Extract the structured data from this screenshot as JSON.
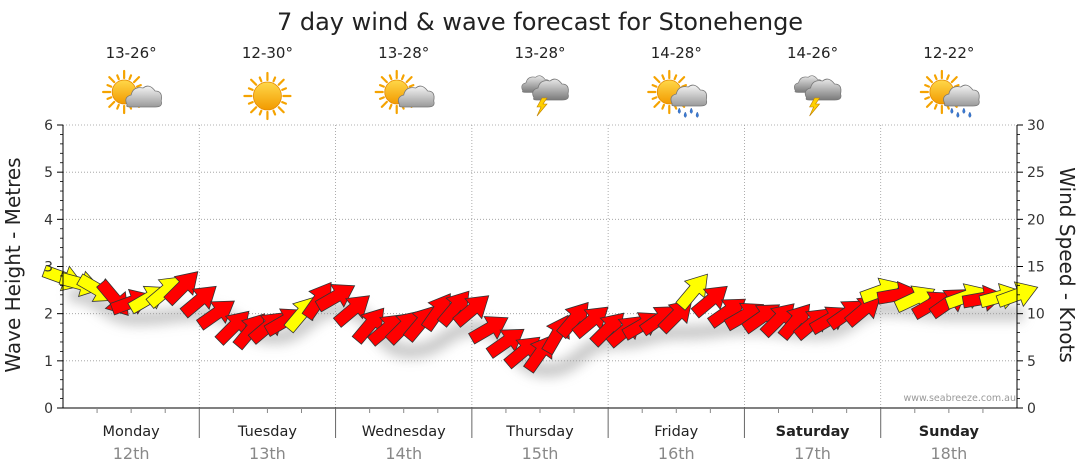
{
  "chart_data": {
    "type": "line",
    "title": "7 day wind & wave forecast for Stonehenge",
    "ylabel_left": "Wave Height - Metres",
    "ylabel_right": "Wind Speed - Knots",
    "ylim_left": [
      0,
      6
    ],
    "ylim_right": [
      0,
      30
    ],
    "yticks_left": [
      "0",
      "1",
      "2",
      "3",
      "4",
      "5",
      "6"
    ],
    "yticks_right": [
      "0",
      "5",
      "10",
      "15",
      "20",
      "25",
      "30"
    ],
    "grid": true,
    "credit": "www.seabreeze.com.au",
    "days": [
      {
        "day": "Monday",
        "date": "12th",
        "temp": "13-26°",
        "icon": "partly-cloudy-icon",
        "bold": false
      },
      {
        "day": "Tuesday",
        "date": "13th",
        "temp": "12-30°",
        "icon": "sunny-icon",
        "bold": false
      },
      {
        "day": "Wednesday",
        "date": "14th",
        "temp": "13-28°",
        "icon": "partly-cloudy-icon",
        "bold": false
      },
      {
        "day": "Thursday",
        "date": "15th",
        "temp": "13-28°",
        "icon": "storm-icon",
        "bold": false
      },
      {
        "day": "Friday",
        "date": "16th",
        "temp": "14-28°",
        "icon": "sun-showers-icon",
        "bold": false
      },
      {
        "day": "Saturday",
        "date": "17th",
        "temp": "14-26°",
        "icon": "storm-icon",
        "bold": true
      },
      {
        "day": "Sunday",
        "date": "18th",
        "temp": "12-22°",
        "icon": "sun-showers-icon",
        "bold": true
      }
    ],
    "wave_height": {
      "x_hours": [
        0,
        12,
        24,
        36,
        48,
        60,
        72,
        84,
        96,
        108,
        120,
        132,
        144,
        156,
        168
      ],
      "values": [
        2.7,
        2.2,
        2.3,
        1.8,
        2.4,
        1.5,
        2.0,
        1.1,
        1.7,
        1.9,
        2.0,
        1.9,
        2.4,
        2.3,
        2.3
      ]
    },
    "wind_arrows": {
      "colors": {
        "strong": "#ff0000",
        "light": "#ffff00",
        "outline": "#333333",
        "shadow": "#bbbbbb"
      },
      "hours": [
        0,
        3,
        6,
        9,
        12,
        15,
        18,
        21,
        24,
        27,
        30,
        33,
        36,
        39,
        42,
        45,
        48,
        51,
        54,
        57,
        60,
        63,
        66,
        69,
        72,
        75,
        78,
        81,
        84,
        87,
        90,
        93,
        96,
        99,
        102,
        105,
        108,
        111,
        114,
        117,
        120,
        123,
        126,
        129,
        132,
        135,
        138,
        141,
        144,
        147,
        150,
        153,
        156,
        159,
        162,
        165,
        168
      ],
      "knots": [
        13.8,
        13.2,
        12.6,
        11.6,
        11.2,
        11.6,
        12.4,
        12.8,
        11.4,
        10.0,
        8.6,
        8.2,
        8.6,
        9.2,
        10.0,
        11.4,
        11.8,
        10.4,
        8.8,
        8.4,
        8.6,
        9.0,
        10.2,
        10.6,
        10.4,
        8.4,
        7.0,
        6.0,
        5.8,
        7.8,
        9.4,
        9.2,
        8.4,
        8.2,
        8.8,
        9.4,
        9.8,
        12.4,
        11.4,
        10.2,
        9.8,
        9.6,
        9.4,
        9.2,
        9.0,
        9.4,
        10.0,
        10.4,
        12.4,
        12.0,
        11.6,
        11.0,
        11.2,
        11.8,
        11.6,
        11.8,
        12.0
      ],
      "directions_deg": [
        290,
        285,
        300,
        320,
        250,
        240,
        230,
        225,
        230,
        235,
        225,
        220,
        230,
        240,
        220,
        215,
        240,
        230,
        220,
        230,
        225,
        220,
        215,
        220,
        230,
        240,
        235,
        230,
        215,
        210,
        220,
        230,
        225,
        230,
        240,
        235,
        225,
        220,
        230,
        235,
        240,
        235,
        225,
        220,
        230,
        240,
        235,
        230,
        250,
        260,
        245,
        240,
        235,
        250,
        260,
        255,
        250
      ],
      "strong": [
        false,
        false,
        false,
        true,
        true,
        false,
        false,
        true,
        true,
        true,
        true,
        true,
        true,
        true,
        false,
        true,
        true,
        true,
        true,
        true,
        true,
        true,
        true,
        true,
        true,
        true,
        true,
        true,
        true,
        true,
        true,
        true,
        true,
        true,
        true,
        true,
        true,
        false,
        true,
        true,
        true,
        true,
        true,
        true,
        true,
        true,
        true,
        true,
        false,
        true,
        false,
        true,
        true,
        false,
        true,
        false,
        false
      ]
    }
  }
}
